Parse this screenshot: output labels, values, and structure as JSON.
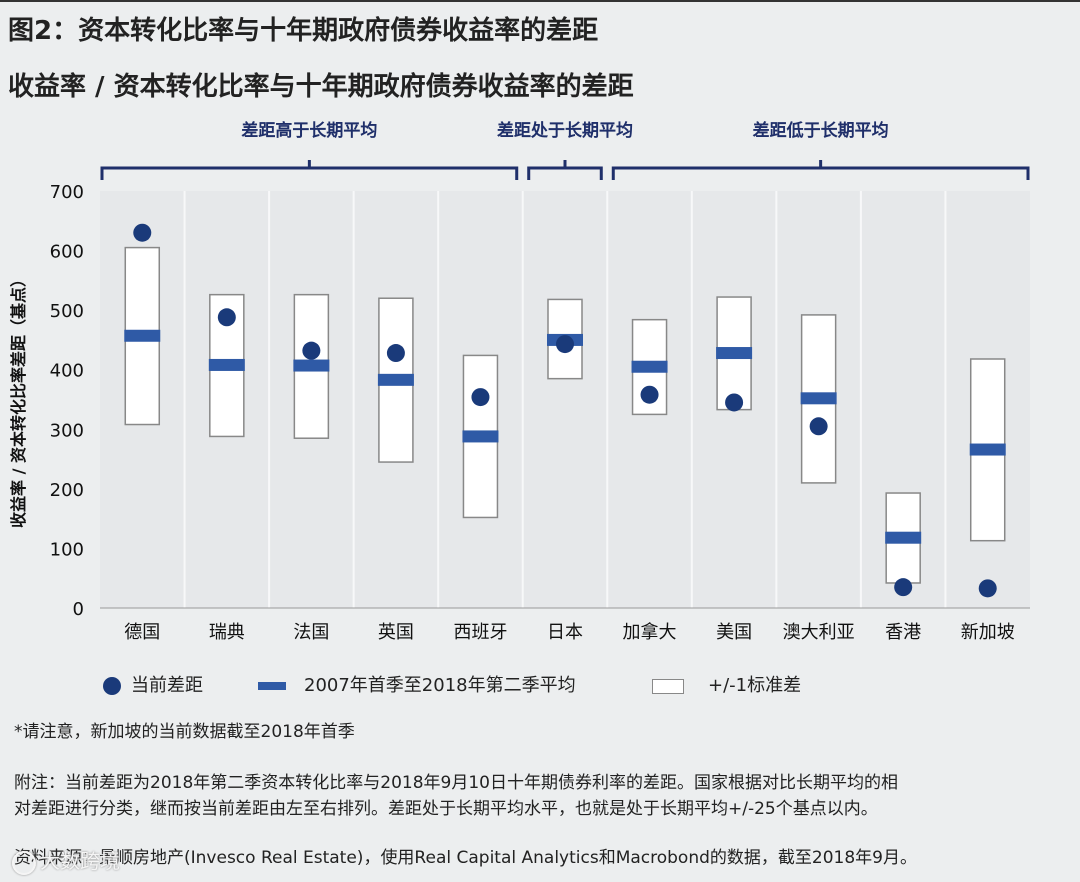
{
  "figure": {
    "title": "图2：资本转化比率与十年期政府债券收益率的差距",
    "subtitle": "收益率 / 资本转化比率与十年期政府债券收益率的差距"
  },
  "chart_data": {
    "type": "scatter",
    "ylabel": "收益率 / 资本转化比率差距（基点）",
    "ylim": [
      0,
      700
    ],
    "yticks": [
      0,
      100,
      200,
      300,
      400,
      500,
      600,
      700
    ],
    "categories": [
      "德国",
      "瑞典",
      "法国",
      "英国",
      "西班牙",
      "日本",
      "加拿大",
      "美国",
      "澳大利亚",
      "香港",
      "新加坡"
    ],
    "series": [
      {
        "name": "当前差距",
        "values": [
          630,
          488,
          432,
          428,
          354,
          443,
          358,
          345,
          305,
          35,
          33
        ]
      },
      {
        "name": "2007年首季至2018年第二季平均",
        "values": [
          457,
          408,
          407,
          383,
          288,
          450,
          405,
          428,
          352,
          118,
          266
        ]
      },
      {
        "name": "+/-1标准差",
        "low": [
          308,
          288,
          285,
          245,
          152,
          385,
          325,
          333,
          210,
          42,
          113
        ],
        "high": [
          605,
          526,
          526,
          520,
          424,
          518,
          484,
          522,
          492,
          193,
          418
        ]
      }
    ],
    "groups": [
      {
        "label": "差距高于长期平均",
        "from": 0,
        "to": 4
      },
      {
        "label": "差距处于长期平均",
        "from": 5,
        "to": 5
      },
      {
        "label": "差距低于长期平均",
        "from": 6,
        "to": 10
      }
    ],
    "colors": {
      "dot": "#1a3a7a",
      "mean": "#2f5aa6",
      "bracket": "#1f2f6a",
      "box_border": "#888888"
    }
  },
  "legend": {
    "dot_label": "当前差距",
    "bar_label": "2007年首季至2018年第二季平均",
    "box_label": "+/-1标准差"
  },
  "notes": {
    "asterisk": "*请注意，新加坡的当前数据截至2018年首季",
    "appendix_1": "附注：当前差距为2018年第二季资本转化比率与2018年9月10日十年期债券利率的差距。国家根据对比长期平均的相",
    "appendix_2": "对差距进行分类，继而按当前差距由左至右排列。差距处于长期平均水平，也就是处于长期平均+/-25个基点以内。",
    "source": "资料来源：景顺房地产(Invesco Real Estate)，使用Real Capital Analytics和Macrobond的数据，截至2018年9月。"
  },
  "watermark": {
    "text": "大数跨境"
  }
}
